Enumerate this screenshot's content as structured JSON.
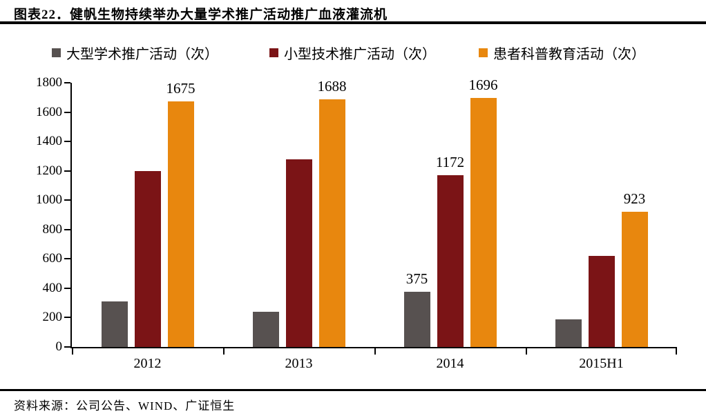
{
  "header": {
    "title": "图表22．健帆生物持续举办大量学术推广活动推广血液灌流机"
  },
  "footer": {
    "source": "资料来源：公司公告、WIND、广证恒生"
  },
  "colors": {
    "large": "#575150",
    "small": "#7B1416",
    "patient": "#E8870E",
    "axis": "#000000"
  },
  "chart_data": {
    "type": "bar",
    "categories": [
      "2012",
      "2013",
      "2014",
      "2015H1"
    ],
    "series": [
      {
        "name": "大型学术推广活动（次）",
        "color_key": "large",
        "values": [
          310,
          240,
          375,
          190
        ],
        "labels": [
          null,
          null,
          "375",
          null
        ]
      },
      {
        "name": "小型技术推广活动（次）",
        "color_key": "small",
        "values": [
          1200,
          1280,
          1172,
          620
        ],
        "labels": [
          null,
          null,
          "1172",
          null
        ]
      },
      {
        "name": "患者科普教育活动（次）",
        "color_key": "patient",
        "values": [
          1675,
          1688,
          1696,
          923
        ],
        "labels": [
          "1675",
          "1688",
          "1696",
          "923"
        ]
      }
    ],
    "title": "健帆生物持续举办大量学术推广活动推广血液灌流机",
    "xlabel": "",
    "ylabel": "",
    "ylim": [
      0,
      1800
    ],
    "ytick_step": 200,
    "yticks": [
      "1800",
      "1600",
      "1400",
      "1200",
      "1000",
      "800",
      "600",
      "400",
      "200",
      "0"
    ],
    "legend_position": "top",
    "grid": false
  }
}
